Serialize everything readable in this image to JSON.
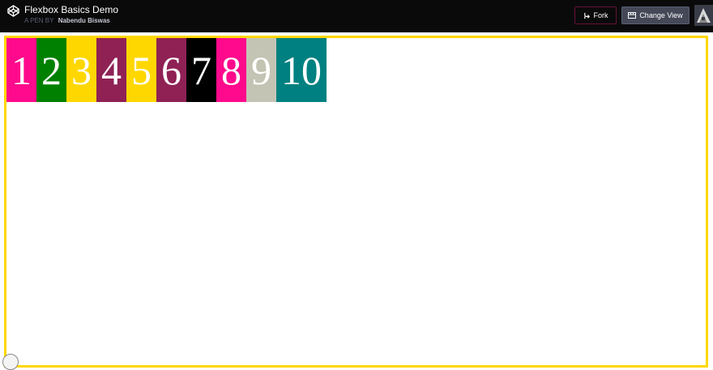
{
  "header": {
    "title": "Flexbox Basics Demo",
    "byline_prefix": "A PEN BY",
    "author": "Nabendu Biswas",
    "fork_label": "Fork",
    "change_view_label": "Change View",
    "logo_icon": "codepen-logo-icon",
    "fork_icon": "fork-icon",
    "change_view_icon": "layout-icon"
  },
  "stage": {
    "border_color": "#ffd700",
    "boxes": [
      {
        "label": "1",
        "color": "#ff0a8c"
      },
      {
        "label": "2",
        "color": "#008000"
      },
      {
        "label": "3",
        "color": "#ffd700"
      },
      {
        "label": "4",
        "color": "#8f2155"
      },
      {
        "label": "5",
        "color": "#ffd700"
      },
      {
        "label": "6",
        "color": "#8f2155"
      },
      {
        "label": "7",
        "color": "#000000"
      },
      {
        "label": "8",
        "color": "#ff0a8c"
      },
      {
        "label": "9",
        "color": "#c4c4b4"
      },
      {
        "label": "10",
        "color": "#008080"
      }
    ]
  }
}
